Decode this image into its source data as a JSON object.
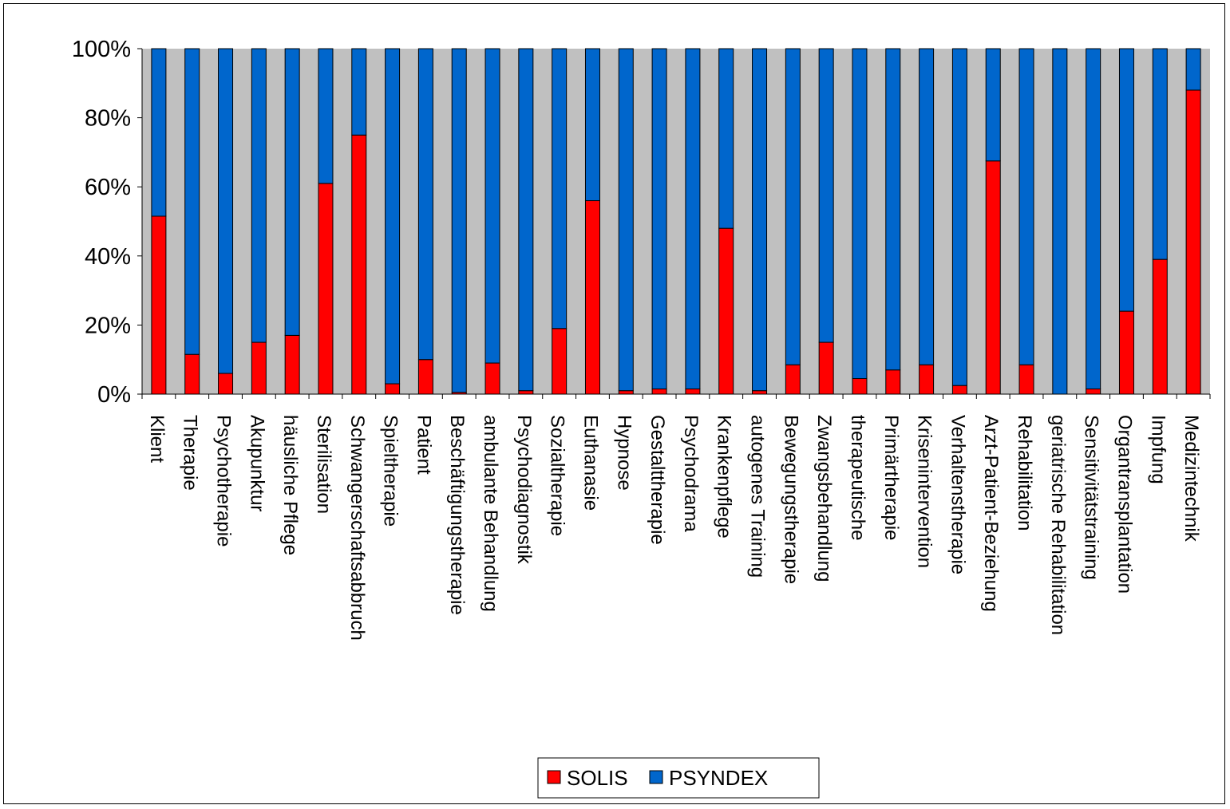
{
  "chart_data": {
    "type": "bar",
    "stacked": true,
    "percent_stacked": true,
    "categories": [
      "Klient",
      "Therapie",
      "Psychotherapie",
      "Akupunktur",
      "häusliche Pflege",
      "Sterilisation",
      "Schwangerschaftsabbruch",
      "Spieltherapie",
      "Patient",
      "Beschäftigungstherapie",
      "ambulante Behandlung",
      "Psychodiagnostik",
      "Sozialtherapie",
      "Euthanasie",
      "Hypnose",
      "Gestalttherapie",
      "Psychodrama",
      "Krankenpflege",
      "autogenes Training",
      "Bewegungstherapie",
      "Zwangsbehandlung",
      "therapeutische",
      "Primärtherapie",
      "Krisenintervention",
      "Verhaltenstherapie",
      "Arzt-Patient-Beziehung",
      "Rehabilitation",
      "geriatrische Rehabilitation",
      "Sensitivitätstraining",
      "Organtransplantation",
      "Impfung",
      "Medizintechnik"
    ],
    "series": [
      {
        "name": "SOLIS",
        "color": "#ff0000",
        "values": [
          51.5,
          11.5,
          6,
          15,
          17,
          61,
          75,
          3,
          10,
          0.5,
          9,
          1,
          19,
          56,
          1,
          1.5,
          1.5,
          48,
          1,
          8.5,
          15,
          4.5,
          7,
          8.5,
          2.5,
          67.5,
          8.5,
          0,
          1.5,
          24,
          39,
          88
        ]
      },
      {
        "name": "PSYNDEX",
        "color": "#0066cc",
        "values": [
          48.5,
          88.5,
          94,
          85,
          83,
          39,
          25,
          97,
          90,
          99.5,
          91,
          99,
          81,
          44,
          99,
          98.5,
          98.5,
          52,
          99,
          91.5,
          85,
          95.5,
          93,
          91.5,
          97.5,
          32.5,
          91.5,
          100,
          98.5,
          76,
          61,
          12
        ]
      }
    ],
    "ylim": [
      0,
      100
    ],
    "yticks": [
      "0%",
      "20%",
      "40%",
      "60%",
      "80%",
      "100%"
    ],
    "plot_background": "#c0c0c0",
    "grid": false,
    "legend_position": "bottom"
  }
}
